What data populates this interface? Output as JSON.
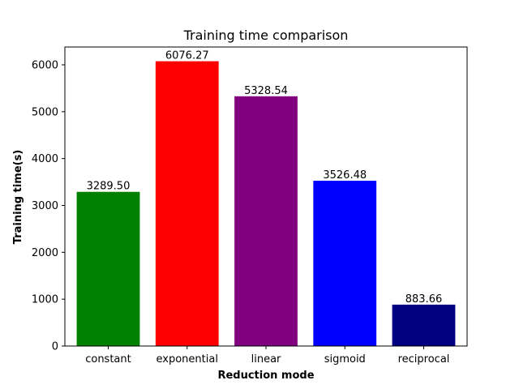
{
  "chart_data": {
    "type": "bar",
    "title": "Training time comparison",
    "xlabel": "Reduction mode",
    "ylabel": "Training time(s)",
    "categories": [
      "constant",
      "exponential",
      "linear",
      "sigmoid",
      "reciprocal"
    ],
    "values": [
      3289.5,
      6076.27,
      5328.54,
      3526.48,
      883.66
    ],
    "value_labels": [
      "3289.50",
      "6076.27",
      "5328.54",
      "3526.48",
      "883.66"
    ],
    "colors": [
      "#008000",
      "#ff0000",
      "#800080",
      "#0000ff",
      "#000080"
    ],
    "ylim": [
      0,
      6380
    ],
    "yticks": [
      0,
      1000,
      2000,
      3000,
      4000,
      5000,
      6000
    ],
    "grid": false,
    "legend": "none"
  }
}
